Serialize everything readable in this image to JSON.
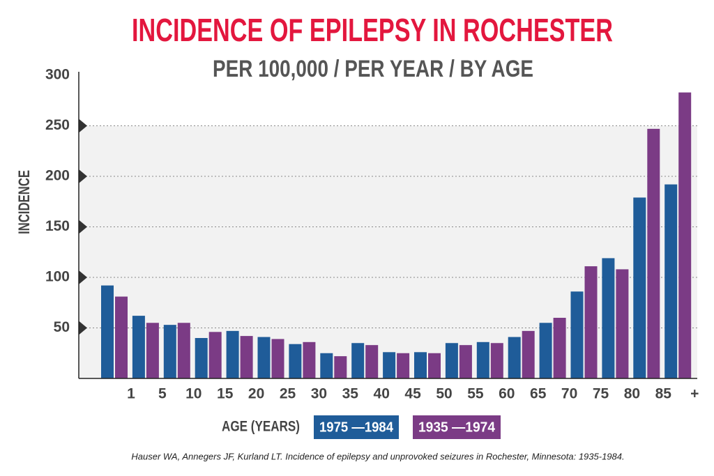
{
  "chart_data": {
    "type": "bar",
    "title": "INCIDENCE OF EPILEPSY IN ROCHESTER",
    "subtitle": "PER 100,000 / PER YEAR / BY AGE",
    "y_label": "INCIDENCE",
    "x_label": "AGE (YEARS)",
    "source": "Hauser WA, Annegers JF, Kurland LT. Incidence of epilepsy and unprovoked seizures in Rochester, Minnesota: 1935-1984.",
    "categories": [
      "1",
      "5",
      "10",
      "15",
      "20",
      "25",
      "30",
      "35",
      "40",
      "45",
      "50",
      "55",
      "60",
      "65",
      "70",
      "75",
      "80",
      "85",
      "+"
    ],
    "series": [
      {
        "name": "1975 —1984",
        "color": "#1f5c99",
        "values": [
          92,
          62,
          53,
          40,
          47,
          41,
          34,
          25,
          35,
          26,
          26,
          35,
          36,
          41,
          55,
          86,
          119,
          179,
          192
        ]
      },
      {
        "name": "1935 —1974",
        "color": "#7b3b85",
        "values": [
          81,
          55,
          55,
          46,
          42,
          39,
          36,
          22,
          33,
          25,
          25,
          33,
          35,
          47,
          60,
          111,
          108,
          247,
          283
        ]
      }
    ],
    "ylim": [
      0,
      300
    ],
    "yticks": [
      50,
      100,
      150,
      200,
      250,
      300
    ],
    "grid": true
  }
}
